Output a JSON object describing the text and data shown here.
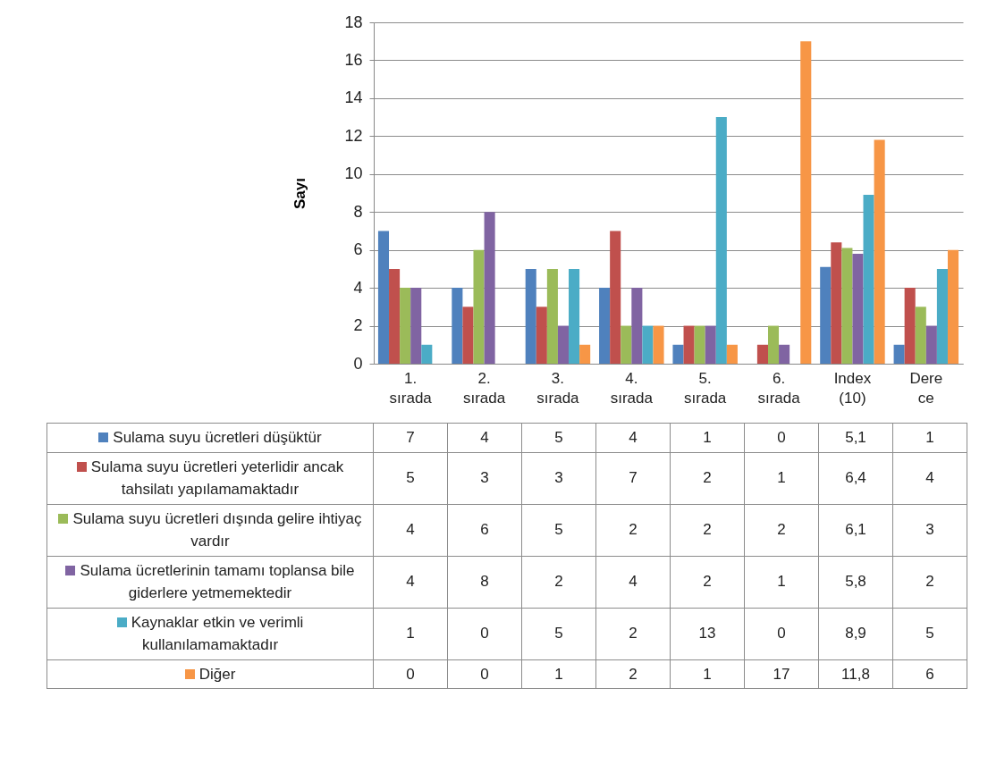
{
  "chart_data": {
    "type": "bar",
    "ylabel": "Sayı",
    "categories": [
      "1. sırada",
      "2. sırada",
      "3. sırada",
      "4. sırada",
      "5. sırada",
      "6. sırada",
      "Index (10)",
      "Dere ce"
    ],
    "ylim": [
      0,
      18
    ],
    "yticks": [
      0,
      2,
      4,
      6,
      8,
      10,
      12,
      14,
      16,
      18
    ],
    "grid": "y",
    "legend": "bottom",
    "series": [
      {
        "name": "Sulama suyu ücretleri düşüktür",
        "color": "#4f81bd",
        "values": [
          7,
          4,
          5,
          4,
          1,
          0,
          5.1,
          1
        ],
        "value_labels": [
          "7",
          "4",
          "5",
          "4",
          "1",
          "0",
          "5,1",
          "1"
        ]
      },
      {
        "name": "Sulama suyu ücretleri yeterlidir ancak tahsilatı yapılamamaktadır",
        "color": "#c0504d",
        "values": [
          5,
          3,
          3,
          7,
          2,
          1,
          6.4,
          4
        ],
        "value_labels": [
          "5",
          "3",
          "3",
          "7",
          "2",
          "1",
          "6,4",
          "4"
        ]
      },
      {
        "name": "Sulama suyu ücretleri dışında gelire ihtiyaç vardır",
        "color": "#9bbb59",
        "values": [
          4,
          6,
          5,
          2,
          2,
          2,
          6.1,
          3
        ],
        "value_labels": [
          "4",
          "6",
          "5",
          "2",
          "2",
          "2",
          "6,1",
          "3"
        ]
      },
      {
        "name": "Sulama ücretlerinin tamamı toplansa bile giderlere yetmemektedir",
        "color": "#8064a2",
        "values": [
          4,
          8,
          2,
          4,
          2,
          1,
          5.8,
          2
        ],
        "value_labels": [
          "4",
          "8",
          "2",
          "4",
          "2",
          "1",
          "5,8",
          "2"
        ]
      },
      {
        "name": "Kaynaklar etkin ve verimli kullanılamamaktadır",
        "color": "#4bacc6",
        "values": [
          1,
          0,
          5,
          2,
          13,
          0,
          8.9,
          5
        ],
        "value_labels": [
          "1",
          "0",
          "5",
          "2",
          "13",
          "0",
          "8,9",
          "5"
        ]
      },
      {
        "name": "Diğer",
        "color": "#f79646",
        "values": [
          0,
          0,
          1,
          2,
          1,
          17,
          11.8,
          6
        ],
        "value_labels": [
          "0",
          "0",
          "1",
          "2",
          "1",
          "17",
          "11,8",
          "6"
        ]
      }
    ]
  }
}
